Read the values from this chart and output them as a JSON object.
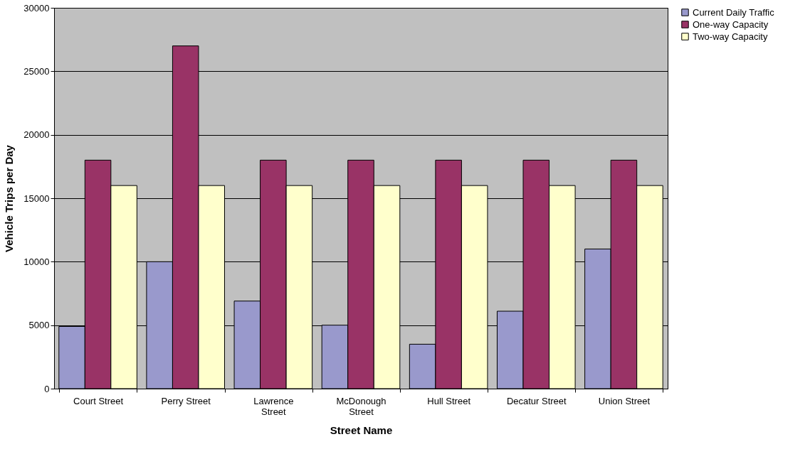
{
  "chart_data": {
    "type": "bar",
    "xlabel": "Street Name",
    "ylabel": "Vehicle Trips per Day",
    "categories": [
      "Court Street",
      "Perry Street",
      "Lawrence Street",
      "McDonough Street",
      "Hull Street",
      "Decatur Street",
      "Union Street"
    ],
    "series": [
      {
        "name": "Current Daily Traffic",
        "color": "#9999cc",
        "values": [
          4900,
          10000,
          6900,
          5000,
          3500,
          6100,
          11000
        ]
      },
      {
        "name": "One-way Capacity",
        "color": "#993366",
        "values": [
          18000,
          27000,
          18000,
          18000,
          18000,
          18000,
          18000
        ]
      },
      {
        "name": "Two-way Capacity",
        "color": "#ffffcc",
        "values": [
          16000,
          16000,
          16000,
          16000,
          16000,
          16000,
          16000
        ]
      }
    ],
    "ylim": [
      0,
      30000
    ],
    "yticks": [
      0,
      5000,
      10000,
      15000,
      20000,
      25000,
      30000
    ],
    "grid": "y",
    "legend": "right"
  }
}
